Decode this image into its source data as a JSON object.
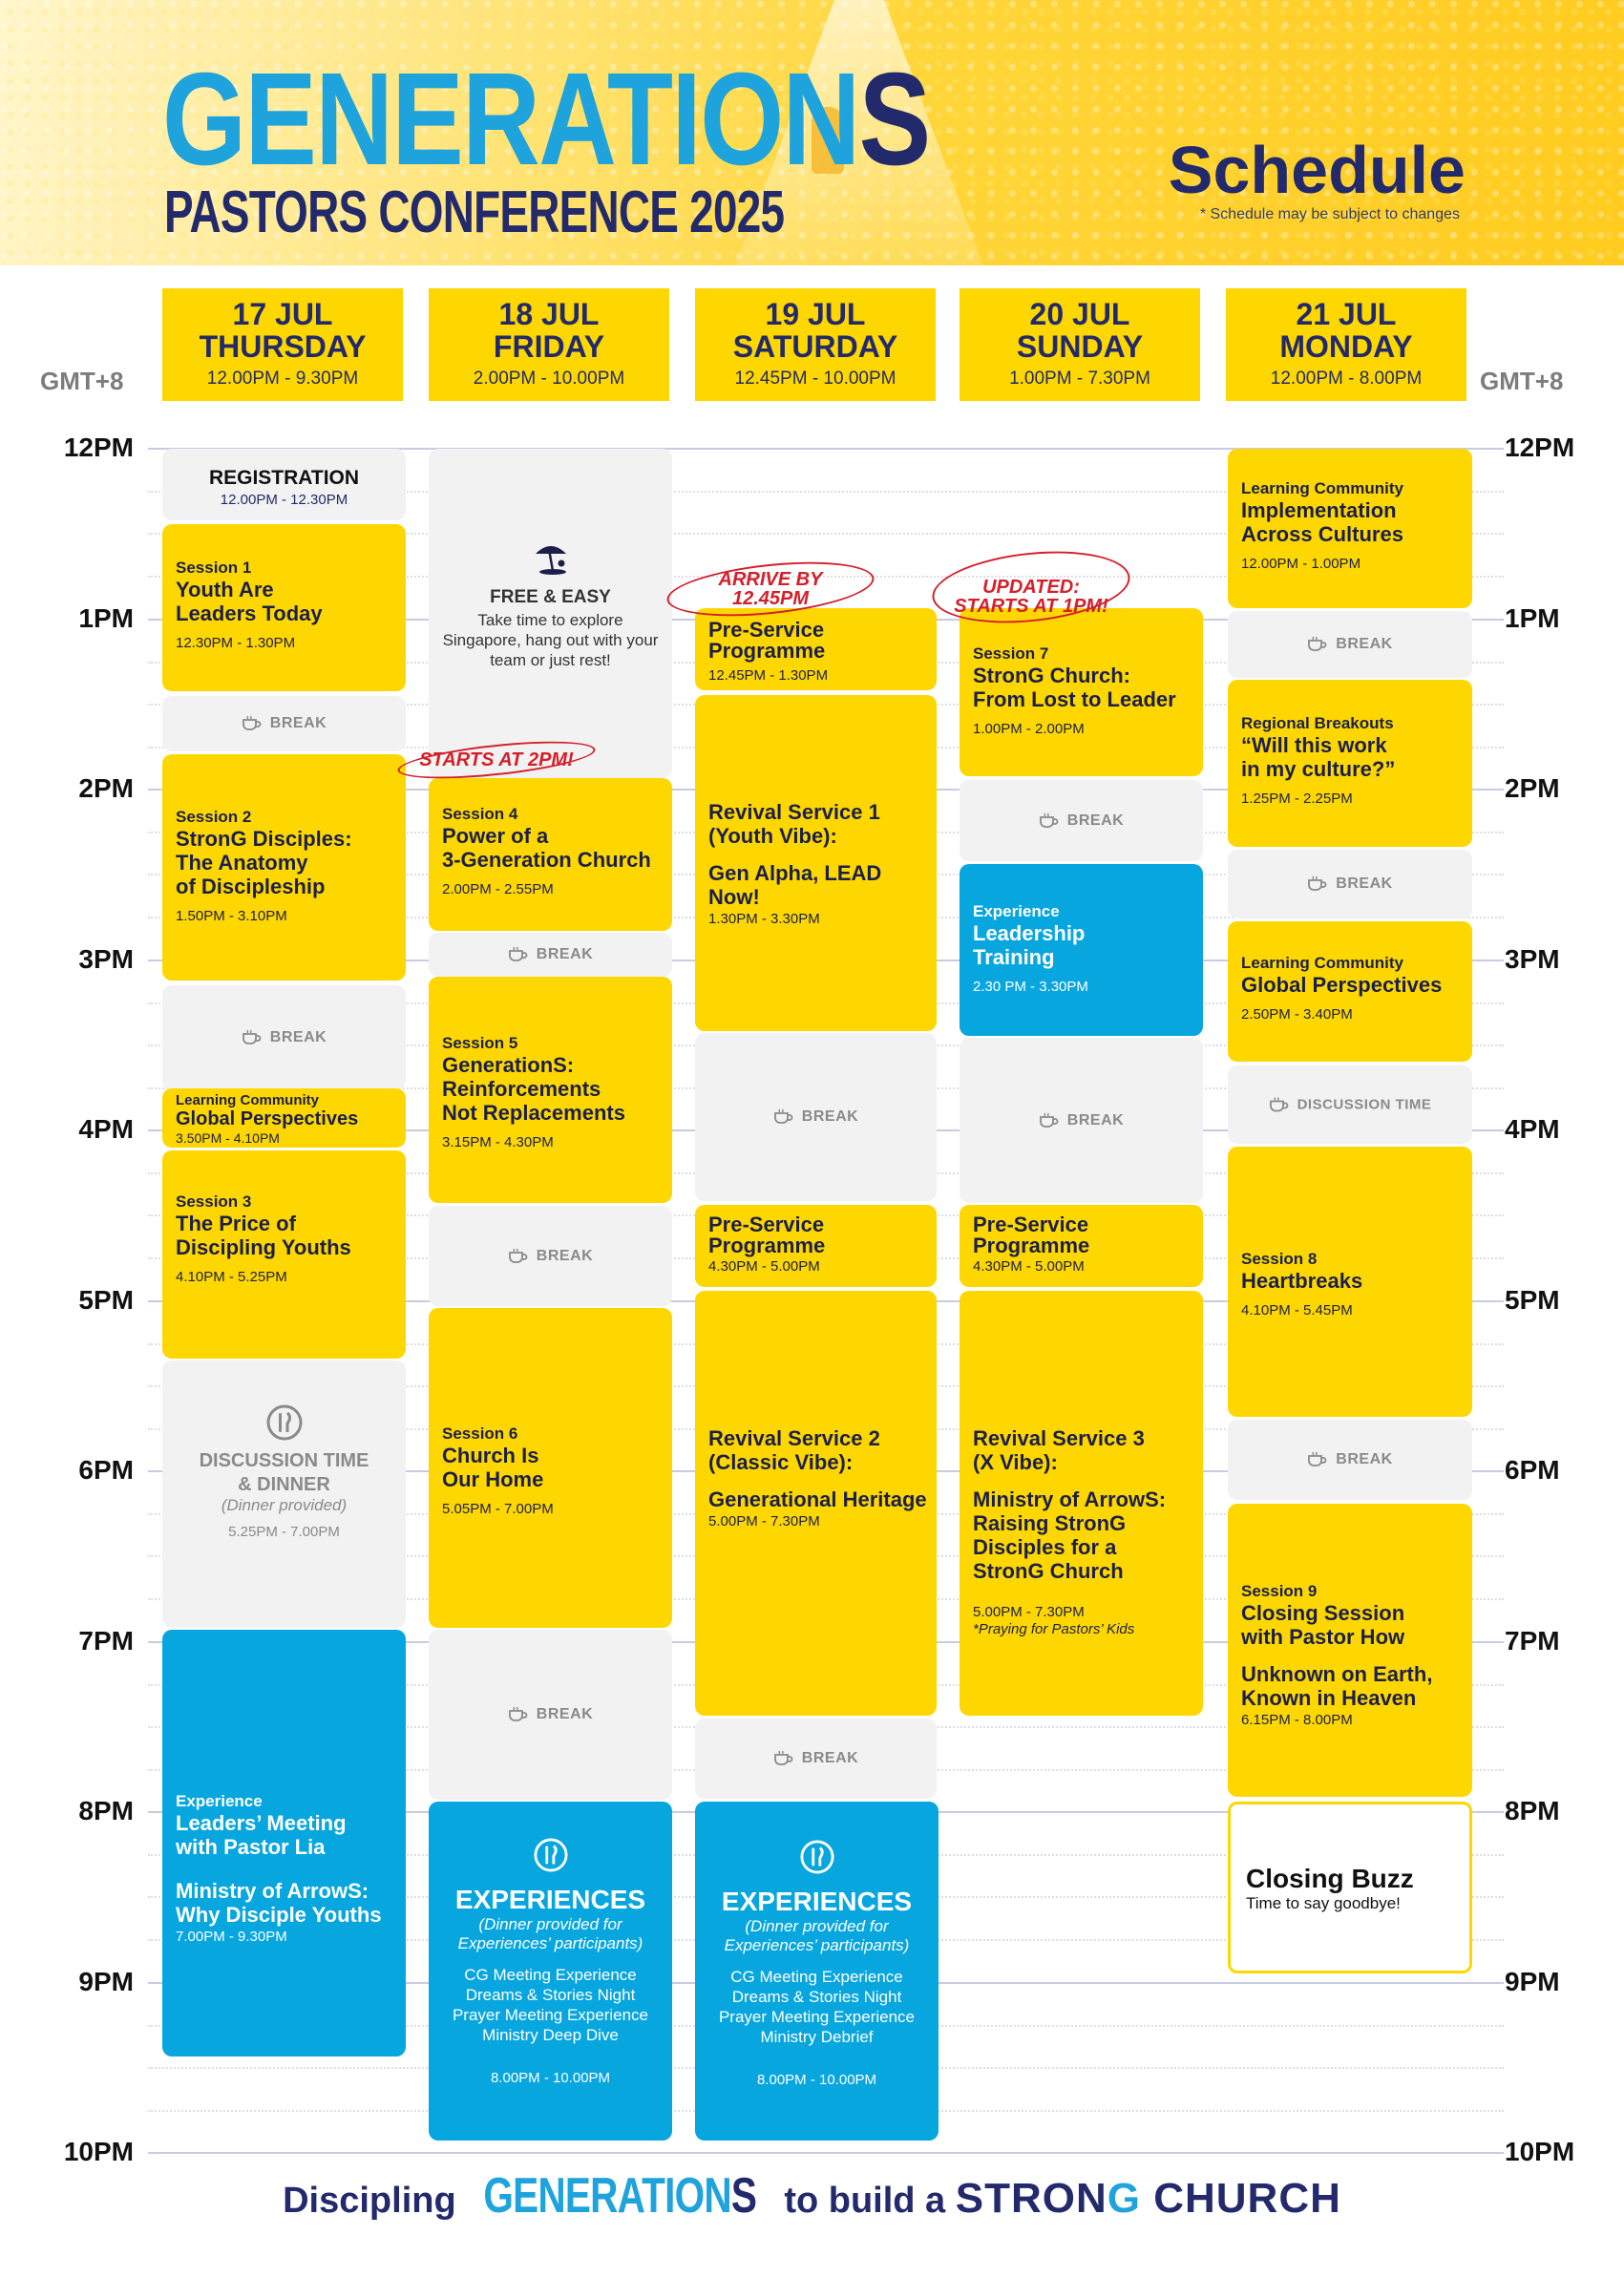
{
  "header": {
    "logo_main": "GENERATION",
    "logo_last": "S",
    "logo_sub": "PASTORS CONFERENCE 2025",
    "title": "Schedule",
    "note": "* Schedule may be subject to changes"
  },
  "timezone": "GMT+8",
  "hours": [
    "12PM",
    "1PM",
    "2PM",
    "3PM",
    "4PM",
    "5PM",
    "6PM",
    "7PM",
    "8PM",
    "9PM",
    "10PM"
  ],
  "days": [
    {
      "date": "17 JUL",
      "weekday": "THURSDAY",
      "hours": "12.00PM - 9.30PM"
    },
    {
      "date": "18 JUL",
      "weekday": "FRIDAY",
      "hours": "2.00PM - 10.00PM"
    },
    {
      "date": "19 JUL",
      "weekday": "SATURDAY",
      "hours": "12.45PM - 10.00PM"
    },
    {
      "date": "20 JUL",
      "weekday": "SUNDAY",
      "hours": "1.00PM - 7.30PM"
    },
    {
      "date": "21 JUL",
      "weekday": "MONDAY",
      "hours": "12.00PM - 8.00PM"
    }
  ],
  "break_label": "BREAK",
  "discussion_label": "DISCUSSION TIME",
  "thu": {
    "registration": {
      "title": "REGISTRATION",
      "time": "12.00PM - 12.30PM"
    },
    "s1": {
      "kicker": "Session 1",
      "title": "Youth Are\nLeaders Today",
      "time": "12.30PM - 1.30PM"
    },
    "s2": {
      "kicker": "Session 2",
      "title": "StronG Disciples:\nThe Anatomy\nof Discipleship",
      "time": "1.50PM - 3.10PM"
    },
    "lc": {
      "kicker": "Learning Community",
      "title": "Global Perspectives",
      "time": "3.50PM - 4.10PM"
    },
    "s3": {
      "kicker": "Session 3",
      "title": "The Price of\nDiscipling Youths",
      "time": "4.10PM - 5.25PM"
    },
    "dinner": {
      "title": "DISCUSSION TIME\n& DINNER",
      "sub": "(Dinner provided)",
      "time": "5.25PM - 7.00PM"
    },
    "exp": {
      "kicker": "Experience",
      "title": "Leaders’ Meeting\nwith Pastor Lia",
      "title2": "Ministry of ArrowS:\nWhy Disciple Youths",
      "time": "7.00PM - 9.30PM"
    }
  },
  "fri": {
    "free": {
      "title": "FREE & EASY",
      "desc": "Take time to explore Singapore, hang out with your team or just rest!"
    },
    "callout": "STARTS AT 2PM!",
    "s4": {
      "kicker": "Session 4",
      "title": "Power of a\n3-Generation Church",
      "time": "2.00PM - 2.55PM"
    },
    "s5": {
      "kicker": "Session 5",
      "title": "GenerationS:\nReinforcements\nNot Replacements",
      "time": "3.15PM - 4.30PM"
    },
    "s6": {
      "kicker": "Session 6",
      "title": "Church Is\nOur Home",
      "time": "5.05PM - 7.00PM"
    },
    "exp": {
      "title": "EXPERIENCES",
      "sub": "(Dinner provided for\nExperiences’ participants)",
      "items": [
        "CG Meeting Experience",
        "Dreams & Stories Night",
        "Prayer Meeting Experience",
        "Ministry Deep Dive"
      ],
      "time": "8.00PM - 10.00PM"
    }
  },
  "sat": {
    "callout": "ARRIVE BY 12.45PM",
    "pre1": {
      "title": "Pre-Service\nProgramme",
      "time": "12.45PM - 1.30PM"
    },
    "rev1": {
      "title": "Revival Service 1\n(Youth Vibe):",
      "title2": "Gen Alpha, LEAD Now!",
      "time": "1.30PM - 3.30PM"
    },
    "pre2": {
      "title": "Pre-Service\nProgramme",
      "time": "4.30PM - 5.00PM"
    },
    "rev2": {
      "title": "Revival Service 2\n(Classic Vibe):",
      "title2": "Generational Heritage",
      "time": "5.00PM - 7.30PM"
    },
    "exp": {
      "title": "EXPERIENCES",
      "sub": "(Dinner provided for\nExperiences’ participants)",
      "items": [
        "CG Meeting Experience",
        "Dreams & Stories Night",
        "Prayer Meeting Experience",
        "Ministry Debrief"
      ],
      "time": "8.00PM - 10.00PM"
    }
  },
  "sun": {
    "callout": "UPDATED:\nSTARTS AT 1PM!",
    "s7": {
      "kicker": "Session 7",
      "title": "StronG Church:\nFrom Lost to Leader",
      "time": "1.00PM - 2.00PM"
    },
    "exp": {
      "kicker": "Experience",
      "title": "Leadership\nTraining",
      "time": "2.30 PM - 3.30PM"
    },
    "pre": {
      "title": "Pre-Service\nProgramme",
      "time": "4.30PM - 5.00PM"
    },
    "rev3": {
      "title": "Revival Service 3\n(X Vibe):",
      "title2": "Ministry of ArrowS:\nRaising StronG\nDisciples for a\nStronG Church",
      "time": "5.00PM - 7.30PM",
      "note": "*Praying for Pastors’ Kids"
    }
  },
  "mon": {
    "lc1": {
      "kicker": "Learning Community",
      "title": "Implementation\nAcross Cultures",
      "time": "12.00PM - 1.00PM"
    },
    "rb": {
      "kicker": "Regional Breakouts",
      "title": "“Will this work\nin my culture?”",
      "time": "1.25PM - 2.25PM"
    },
    "lc2": {
      "kicker": "Learning Community",
      "title": "Global Perspectives",
      "time": "2.50PM - 3.40PM"
    },
    "s8": {
      "kicker": "Session 8",
      "title": "Heartbreaks",
      "time": "4.10PM - 5.45PM"
    },
    "s9": {
      "kicker": "Session 9",
      "title": "Closing Session\nwith Pastor How",
      "title2": "Unknown on Earth,\nKnown in Heaven",
      "time": "6.15PM - 8.00PM"
    },
    "closing": {
      "title": "Closing Buzz",
      "sub": "Time to say goodbye!"
    }
  },
  "footer": {
    "pre": "Discipling",
    "gen_main": "GENERATION",
    "gen_last": "S",
    "mid": "to build a",
    "strong_a": "STRON",
    "strong_g": "G",
    "strong_b": "CHURCH"
  },
  "colors": {
    "yellow": "#fed700",
    "blue": "#07a6de",
    "navy": "#232a6b",
    "grey": "#f2f2f2",
    "red": "#d3202a"
  }
}
